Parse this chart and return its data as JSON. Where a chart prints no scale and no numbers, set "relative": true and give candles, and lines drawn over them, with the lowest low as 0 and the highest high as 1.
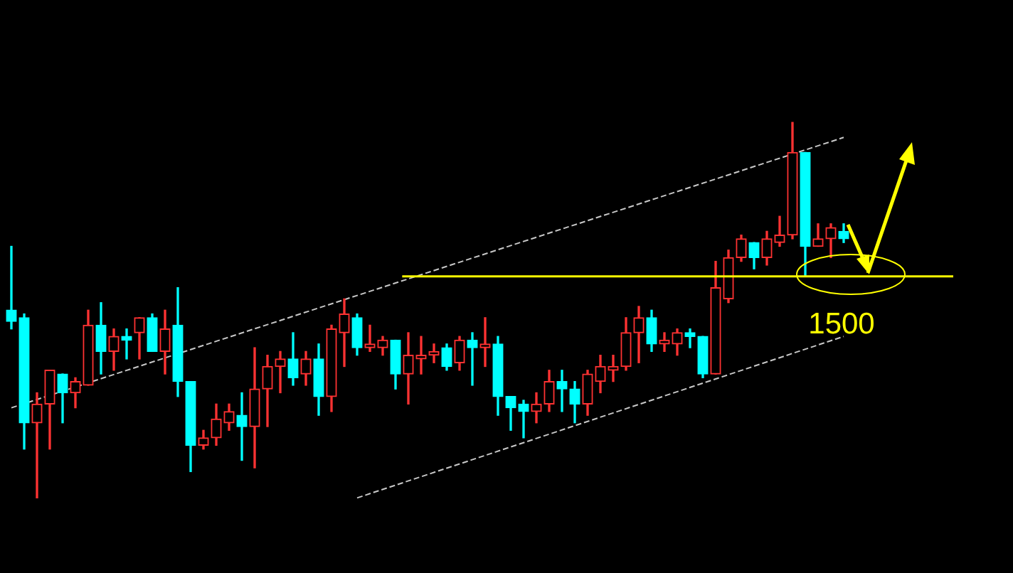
{
  "chart_data": {
    "type": "candlestick",
    "relative": true,
    "categories": [
      null,
      null,
      null,
      null,
      null,
      null,
      null,
      null,
      null,
      null,
      null,
      null,
      null,
      null,
      null,
      null,
      null,
      null,
      null,
      null,
      null,
      null,
      null,
      null,
      null,
      null,
      null,
      null,
      null,
      null,
      null,
      null,
      null,
      null,
      null,
      null,
      null,
      null,
      null,
      null,
      null,
      null,
      null,
      null,
      null,
      null,
      null,
      null,
      null,
      null,
      null,
      null,
      null,
      null,
      null,
      null,
      null,
      null,
      null,
      null,
      null,
      null,
      null,
      null,
      null,
      null
    ],
    "ohlc": [
      [
        0.5,
        0.67,
        0.45,
        0.47
      ],
      [
        0.48,
        0.49,
        0.13,
        0.2
      ],
      [
        0.2,
        0.28,
        0,
        0.25
      ],
      [
        0.25,
        0.34,
        0.13,
        0.34
      ],
      [
        0.33,
        0.33,
        0.2,
        0.28
      ],
      [
        0.28,
        0.32,
        0.24,
        0.31
      ],
      [
        0.3,
        0.5,
        0.3,
        0.46
      ],
      [
        0.46,
        0.52,
        0.33,
        0.39
      ],
      [
        0.39,
        0.45,
        0.34,
        0.43
      ],
      [
        0.43,
        0.45,
        0.37,
        0.42
      ],
      [
        0.44,
        0.48,
        0.37,
        0.48
      ],
      [
        0.48,
        0.49,
        0.39,
        0.39
      ],
      [
        0.39,
        0.5,
        0.33,
        0.45
      ],
      [
        0.46,
        0.56,
        0.27,
        0.31
      ],
      [
        0.31,
        0.31,
        0.07,
        0.14
      ],
      [
        0.14,
        0.18,
        0.13,
        0.16
      ],
      [
        0.16,
        0.25,
        0.14,
        0.21
      ],
      [
        0.2,
        0.25,
        0.18,
        0.23
      ],
      [
        0.22,
        0.28,
        0.1,
        0.19
      ],
      [
        0.19,
        0.4,
        0.08,
        0.29
      ],
      [
        0.29,
        0.38,
        0.19,
        0.35
      ],
      [
        0.35,
        0.39,
        0.28,
        0.37
      ],
      [
        0.37,
        0.44,
        0.3,
        0.32
      ],
      [
        0.33,
        0.39,
        0.3,
        0.37
      ],
      [
        0.37,
        0.41,
        0.22,
        0.27
      ],
      [
        0.27,
        0.46,
        0.23,
        0.45
      ],
      [
        0.44,
        0.53,
        0.35,
        0.49
      ],
      [
        0.48,
        0.49,
        0.38,
        0.4
      ],
      [
        0.4,
        0.46,
        0.39,
        0.41
      ],
      [
        0.4,
        0.43,
        0.38,
        0.42
      ],
      [
        0.42,
        0.42,
        0.29,
        0.33
      ],
      [
        0.33,
        0.44,
        0.25,
        0.38
      ],
      [
        0.37,
        0.43,
        0.33,
        0.38
      ],
      [
        0.38,
        0.41,
        0.36,
        0.39
      ],
      [
        0.4,
        0.41,
        0.34,
        0.35
      ],
      [
        0.36,
        0.43,
        0.34,
        0.42
      ],
      [
        0.42,
        0.44,
        0.3,
        0.4
      ],
      [
        0.4,
        0.48,
        0.35,
        0.41
      ],
      [
        0.41,
        0.43,
        0.22,
        0.27
      ],
      [
        0.27,
        0.27,
        0.18,
        0.24
      ],
      [
        0.25,
        0.26,
        0.16,
        0.23
      ],
      [
        0.23,
        0.28,
        0.2,
        0.25
      ],
      [
        0.25,
        0.34,
        0.23,
        0.31
      ],
      [
        0.31,
        0.34,
        0.23,
        0.29
      ],
      [
        0.29,
        0.31,
        0.2,
        0.25
      ],
      [
        0.25,
        0.34,
        0.22,
        0.33
      ],
      [
        0.31,
        0.38,
        0.28,
        0.35
      ],
      [
        0.34,
        0.38,
        0.31,
        0.35
      ],
      [
        0.35,
        0.48,
        0.34,
        0.44
      ],
      [
        0.44,
        0.51,
        0.36,
        0.48
      ],
      [
        0.48,
        0.5,
        0.39,
        0.41
      ],
      [
        0.41,
        0.44,
        0.39,
        0.42
      ],
      [
        0.41,
        0.45,
        0.38,
        0.44
      ],
      [
        0.44,
        0.45,
        0.4,
        0.43
      ],
      [
        0.43,
        0.43,
        0.32,
        0.33
      ],
      [
        0.33,
        0.63,
        0.33,
        0.56
      ],
      [
        0.53,
        0.66,
        0.52,
        0.64
      ],
      [
        0.64,
        0.7,
        0.63,
        0.69
      ],
      [
        0.68,
        0.68,
        0.61,
        0.64
      ],
      [
        0.64,
        0.71,
        0.62,
        0.69
      ],
      [
        0.68,
        0.75,
        0.67,
        0.7
      ],
      [
        0.7,
        1,
        0.69,
        0.92
      ],
      [
        0.92,
        0.92,
        0.59,
        0.67
      ],
      [
        0.67,
        0.73,
        0.67,
        0.69
      ],
      [
        0.69,
        0.73,
        0.64,
        0.72
      ],
      [
        0.71,
        0.73,
        0.68,
        0.69
      ]
    ],
    "colors": [
      "#00ffff",
      "#00ffff",
      "#ff3232",
      "#ff3232",
      "#00ffff",
      "#ff3232",
      "#ff3232",
      "#00ffff",
      "#ff3232",
      "#00ffff",
      "#ff3232",
      "#00ffff",
      "#ff3232",
      "#00ffff",
      "#00ffff",
      "#ff3232",
      "#ff3232",
      "#ff3232",
      "#00ffff",
      "#ff3232",
      "#ff3232",
      "#ff3232",
      "#00ffff",
      "#ff3232",
      "#00ffff",
      "#ff3232",
      "#ff3232",
      "#00ffff",
      "#ff3232",
      "#ff3232",
      "#00ffff",
      "#ff3232",
      "#ff3232",
      "#ff3232",
      "#00ffff",
      "#ff3232",
      "#00ffff",
      "#ff3232",
      "#00ffff",
      "#00ffff",
      "#00ffff",
      "#ff3232",
      "#ff3232",
      "#00ffff",
      "#00ffff",
      "#ff3232",
      "#ff3232",
      "#ff3232",
      "#ff3232",
      "#ff3232",
      "#00ffff",
      "#ff3232",
      "#ff3232",
      "#00ffff",
      "#00ffff",
      "#ff3232",
      "#ff3232",
      "#ff3232",
      "#00ffff",
      "#ff3232",
      "#ff3232",
      "#ff3232",
      "#00ffff",
      "#ff3232",
      "#ff3232",
      "#00ffff"
    ],
    "series": [
      {
        "type": "line",
        "color": "#c8c8c8",
        "line_style": "dashed",
        "values": [
          0.24,
          null,
          null,
          null,
          null,
          null,
          null,
          null,
          null,
          null,
          null,
          null,
          null,
          null,
          null,
          null,
          null,
          null,
          null,
          null,
          null,
          null,
          null,
          null,
          null,
          null,
          null,
          null,
          null,
          null,
          null,
          null,
          null,
          null,
          null,
          null,
          null,
          null,
          null,
          null,
          null,
          null,
          null,
          null,
          null,
          null,
          null,
          null,
          null,
          null,
          null,
          null,
          null,
          null,
          null,
          null,
          null,
          null,
          null,
          null,
          null,
          null,
          null,
          null,
          null,
          0.96
        ]
      },
      {
        "type": "line",
        "color": "#c8c8c8",
        "line_style": "dashed",
        "values": [
          null,
          null,
          null,
          null,
          null,
          null,
          null,
          null,
          null,
          null,
          null,
          null,
          null,
          null,
          null,
          null,
          null,
          null,
          null,
          null,
          null,
          null,
          null,
          null,
          null,
          null,
          null,
          0,
          null,
          null,
          null,
          null,
          null,
          null,
          null,
          null,
          null,
          null,
          null,
          null,
          null,
          null,
          null,
          null,
          null,
          null,
          null,
          null,
          null,
          null,
          null,
          null,
          null,
          null,
          null,
          null,
          null,
          null,
          null,
          null,
          null,
          null,
          null,
          null,
          null,
          0.43
        ]
      }
    ],
    "ref_lines": [
      {
        "axis": "y",
        "value": 0.59,
        "color": "#ffff00"
      }
    ],
    "annotations": [
      "1500"
    ]
  }
}
